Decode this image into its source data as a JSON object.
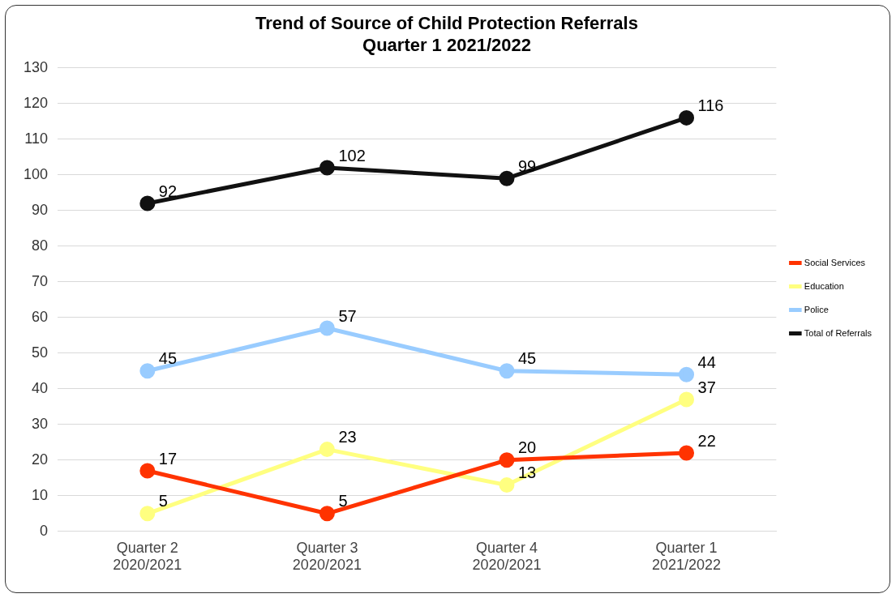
{
  "chart_data": {
    "type": "line",
    "title": "Trend of Source of Child Protection Referrals\nQuarter 1 2021/2022",
    "categories": [
      "Quarter 2\n2020/2021",
      "Quarter 3\n2020/2021",
      "Quarter 4\n2020/2021",
      "Quarter 1\n2021/2022"
    ],
    "series": [
      {
        "name": "Social Services",
        "color": "#ff3300",
        "values": [
          17,
          5,
          20,
          22
        ]
      },
      {
        "name": "Education",
        "color": "#ffff80",
        "values": [
          5,
          23,
          13,
          37
        ]
      },
      {
        "name": "Police",
        "color": "#99ccff",
        "values": [
          45,
          57,
          45,
          44
        ]
      },
      {
        "name": "Total of Referrals",
        "color": "#111111",
        "values": [
          92,
          102,
          99,
          116
        ]
      }
    ],
    "ylim": [
      0,
      130
    ],
    "yticks": [
      0,
      10,
      20,
      30,
      40,
      50,
      60,
      70,
      80,
      90,
      100,
      110,
      120,
      130
    ],
    "grid": "y",
    "legend": "right",
    "marker": "circle",
    "line_style": "solid",
    "data_labels": true
  }
}
